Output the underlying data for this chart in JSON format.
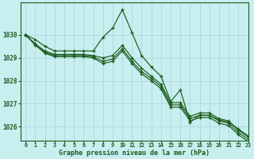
{
  "title": "Graphe pression niveau de la mer (hPa)",
  "bg_color": "#c8eef0",
  "grid_color": "#b0dce0",
  "line_color": "#1a5c1a",
  "text_color": "#1a5c1a",
  "xlim": [
    -0.5,
    23
  ],
  "ylim": [
    1025.4,
    1031.4
  ],
  "yticks": [
    1026,
    1027,
    1028,
    1029,
    1030
  ],
  "xticks": [
    0,
    1,
    2,
    3,
    4,
    5,
    6,
    7,
    8,
    9,
    10,
    11,
    12,
    13,
    14,
    15,
    16,
    17,
    18,
    19,
    20,
    21,
    22,
    23
  ],
  "series": [
    [
      1030.0,
      1029.8,
      1029.5,
      1029.3,
      1029.3,
      1029.3,
      1029.3,
      1029.3,
      1029.9,
      1030.3,
      1031.1,
      1030.1,
      1029.1,
      1028.6,
      1028.2,
      1027.1,
      1027.6,
      1026.2,
      1026.5,
      1026.5,
      1026.3,
      1026.2,
      1025.9,
      1025.6
    ],
    [
      1030.0,
      1029.6,
      1029.3,
      1029.15,
      1029.15,
      1029.15,
      1029.15,
      1029.1,
      1029.0,
      1029.1,
      1029.55,
      1029.0,
      1028.55,
      1028.2,
      1027.85,
      1027.05,
      1027.05,
      1026.45,
      1026.6,
      1026.6,
      1026.35,
      1026.25,
      1025.85,
      1025.55
    ],
    [
      1030.0,
      1029.6,
      1029.25,
      1029.1,
      1029.1,
      1029.1,
      1029.1,
      1029.05,
      1028.85,
      1028.95,
      1029.4,
      1028.85,
      1028.4,
      1028.1,
      1027.75,
      1026.95,
      1026.95,
      1026.35,
      1026.5,
      1026.5,
      1026.25,
      1026.15,
      1025.75,
      1025.45
    ],
    [
      1030.0,
      1029.55,
      1029.2,
      1029.05,
      1029.05,
      1029.05,
      1029.05,
      1029.0,
      1028.75,
      1028.85,
      1029.3,
      1028.75,
      1028.3,
      1028.0,
      1027.65,
      1026.85,
      1026.85,
      1026.25,
      1026.4,
      1026.4,
      1026.15,
      1026.05,
      1025.65,
      1025.35
    ]
  ]
}
